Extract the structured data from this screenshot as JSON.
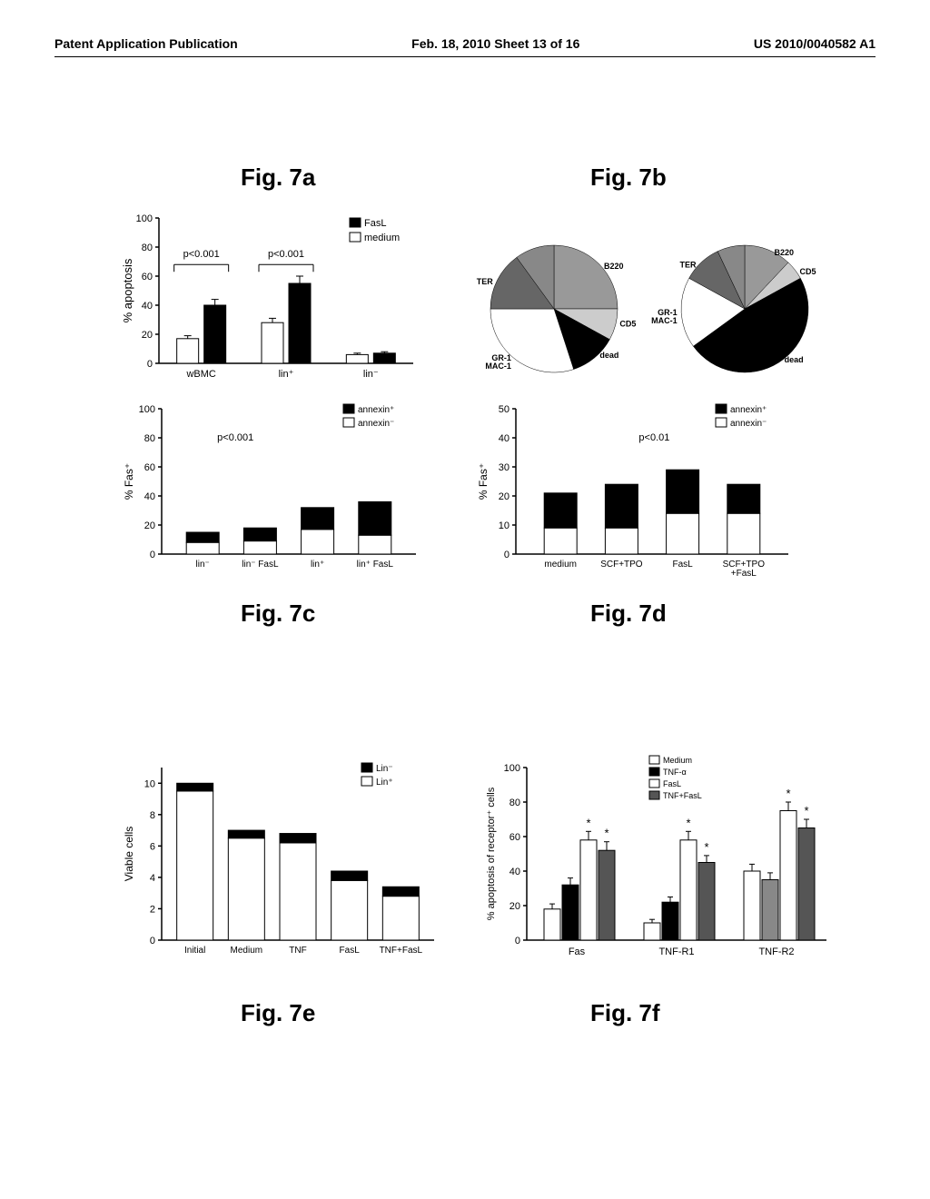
{
  "header": {
    "left": "Patent Application Publication",
    "center": "Feb. 18, 2010  Sheet 13 of 16",
    "right": "US 2010/0040582 A1"
  },
  "fig7a": {
    "label": "Fig. 7a",
    "ylabel": "% apoptosis",
    "ymax": 100,
    "ytick": 20,
    "legend": [
      {
        "label": "FasL",
        "fill": "#000"
      },
      {
        "label": "medium",
        "fill": "#fff"
      }
    ],
    "groups": [
      "wBMC",
      "lin⁺",
      "lin⁻"
    ],
    "bars": [
      {
        "group": 0,
        "x": 0,
        "val": 17,
        "fill": "#fff",
        "err": 2
      },
      {
        "group": 0,
        "x": 1,
        "val": 40,
        "fill": "#000",
        "err": 4
      },
      {
        "group": 1,
        "x": 0,
        "val": 28,
        "fill": "#fff",
        "err": 3
      },
      {
        "group": 1,
        "x": 1,
        "val": 55,
        "fill": "#000",
        "err": 5
      },
      {
        "group": 2,
        "x": 0,
        "val": 6,
        "fill": "#fff",
        "err": 1
      },
      {
        "group": 2,
        "x": 1,
        "val": 7,
        "fill": "#000",
        "err": 1
      }
    ],
    "pvals": [
      {
        "groups": [
          0
        ],
        "text": "p<0.001"
      },
      {
        "groups": [
          1
        ],
        "text": "p<0.001"
      }
    ]
  },
  "fig7b": {
    "label": "Fig. 7b",
    "pies": [
      {
        "slices": [
          {
            "label": "B220",
            "val": 25,
            "fill": "#999"
          },
          {
            "label": "CD5",
            "val": 8,
            "fill": "#ccc"
          },
          {
            "label": "dead",
            "val": 12,
            "fill": "#000"
          },
          {
            "label": "GR-1\nMAC-1",
            "val": 30,
            "fill": "#fff"
          },
          {
            "label": "TER",
            "val": 15,
            "fill": "#666"
          },
          {
            "label": "",
            "val": 10,
            "fill": "#888"
          }
        ]
      },
      {
        "slices": [
          {
            "label": "B220",
            "val": 12,
            "fill": "#999"
          },
          {
            "label": "CD5",
            "val": 5,
            "fill": "#ccc"
          },
          {
            "label": "dead",
            "val": 48,
            "fill": "#000"
          },
          {
            "label": "GR-1\nMAC-1",
            "val": 18,
            "fill": "#fff"
          },
          {
            "label": "TER",
            "val": 10,
            "fill": "#666"
          },
          {
            "label": "",
            "val": 7,
            "fill": "#888"
          }
        ]
      }
    ]
  },
  "fig7c": {
    "label": "Fig. 7c",
    "ylabel": "% Fas⁺",
    "ymax": 100,
    "ytick": 20,
    "legend": [
      {
        "label": "annexin⁺",
        "fill": "#000"
      },
      {
        "label": "annexin⁻",
        "fill": "#fff"
      }
    ],
    "cats": [
      "lin⁻",
      "lin⁻ FasL",
      "lin⁺",
      "lin⁺ FasL"
    ],
    "bars": [
      {
        "bottom": 8,
        "top": 15
      },
      {
        "bottom": 9,
        "top": 18
      },
      {
        "bottom": 17,
        "top": 32
      },
      {
        "bottom": 13,
        "top": 36
      }
    ],
    "pvals": [
      {
        "over": 0,
        "text": "p<0.001"
      }
    ]
  },
  "fig7d": {
    "label": "Fig. 7d",
    "ylabel": "% Fas⁺",
    "ymax": 50,
    "ytick": 10,
    "legend": [
      {
        "label": "annexin⁺",
        "fill": "#000"
      },
      {
        "label": "annexin⁻",
        "fill": "#fff"
      }
    ],
    "cats": [
      "medium",
      "SCF+TPO",
      "FasL",
      "SCF+TPO\n+FasL"
    ],
    "bars": [
      {
        "bottom": 9,
        "top": 21
      },
      {
        "bottom": 9,
        "top": 24
      },
      {
        "bottom": 14,
        "top": 29
      },
      {
        "bottom": 14,
        "top": 24
      }
    ],
    "pvals": [
      {
        "over": 1,
        "text": "p<0.01"
      }
    ]
  },
  "fig7e": {
    "label": "Fig. 7e",
    "ylabel": "Viable cells",
    "ymax": 11,
    "yticks": [
      0,
      2,
      4,
      6,
      8,
      10
    ],
    "legend": [
      {
        "label": "Lin⁻",
        "fill": "#000"
      },
      {
        "label": "Lin⁺",
        "fill": "#fff"
      }
    ],
    "cats": [
      "Initial",
      "Medium",
      "TNF",
      "FasL",
      "TNF+FasL"
    ],
    "bars": [
      {
        "bottom": 9.5,
        "top": 10.0
      },
      {
        "bottom": 6.5,
        "top": 7.0
      },
      {
        "bottom": 6.2,
        "top": 6.8
      },
      {
        "bottom": 3.8,
        "top": 4.4
      },
      {
        "bottom": 2.8,
        "top": 3.4
      }
    ]
  },
  "fig7f": {
    "label": "Fig. 7f",
    "ylabel": "% apoptosis of receptor⁺ cells",
    "ymax": 100,
    "ytick": 20,
    "legend": [
      {
        "label": "Medium",
        "fill": "#fff"
      },
      {
        "label": "TNF-α",
        "fill": "#000"
      },
      {
        "label": "FasL",
        "fill": "#fff"
      },
      {
        "label": "TNF+FasL",
        "fill": "#555"
      }
    ],
    "groups": [
      "Fas",
      "TNF-R1",
      "TNF-R2"
    ],
    "bars": [
      [
        {
          "val": 18,
          "fill": "#fff",
          "err": 3
        },
        {
          "val": 32,
          "fill": "#000",
          "err": 4
        },
        {
          "val": 58,
          "fill": "#fff",
          "err": 5,
          "star": true
        },
        {
          "val": 52,
          "fill": "#555",
          "err": 5,
          "star": true
        }
      ],
      [
        {
          "val": 10,
          "fill": "#fff",
          "err": 2
        },
        {
          "val": 22,
          "fill": "#000",
          "err": 3
        },
        {
          "val": 58,
          "fill": "#fff",
          "err": 5,
          "star": true
        },
        {
          "val": 45,
          "fill": "#555",
          "err": 4,
          "star": true
        }
      ],
      [
        {
          "val": 40,
          "fill": "#fff",
          "err": 4
        },
        {
          "val": 35,
          "fill": "#888",
          "err": 4
        },
        {
          "val": 75,
          "fill": "#fff",
          "err": 5,
          "star": true
        },
        {
          "val": 65,
          "fill": "#555",
          "err": 5,
          "star": true
        }
      ]
    ]
  }
}
